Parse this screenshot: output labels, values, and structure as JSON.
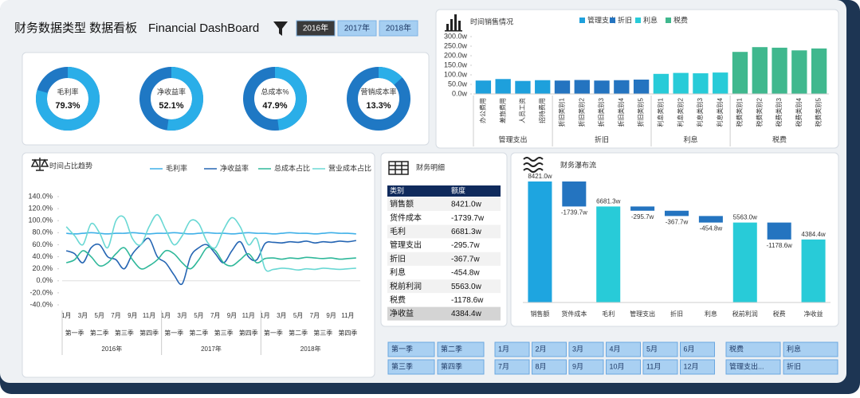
{
  "header": {
    "title_cn": "财务数据类型 数据看板",
    "title_en": "Financial DashBoard",
    "years": [
      "2016年",
      "2017年",
      "2018年"
    ]
  },
  "kpis": [
    {
      "name": "毛利率",
      "value": 79.3,
      "value_label": "79.3%",
      "color": "#2aaee8",
      "track": "#1f78c4"
    },
    {
      "name": "净收益率",
      "value": 52.1,
      "value_label": "52.1%",
      "color": "#2aaee8",
      "track": "#1f78c4"
    },
    {
      "name": "总成本%",
      "value": 47.9,
      "value_label": "47.9%",
      "color": "#2aaee8",
      "track": "#1f78c4"
    },
    {
      "name": "营销成本率",
      "value": 13.3,
      "value_label": "13.3%",
      "color": "#2aaee8",
      "track": "#1f78c4"
    }
  ],
  "chart_data": [
    {
      "type": "bar",
      "title": "时间销售情况",
      "ylim": [
        0,
        300
      ],
      "yticks": [
        {
          "value": 0,
          "label": "0.0w"
        },
        {
          "value": 50,
          "label": "50.0w"
        },
        {
          "value": 100,
          "label": "100.0w"
        },
        {
          "value": 150,
          "label": "150.0w"
        },
        {
          "value": 200,
          "label": "200.0w"
        },
        {
          "value": 250,
          "label": "250.0w"
        },
        {
          "value": 300,
          "label": "300.0w"
        }
      ],
      "series": [
        {
          "name": "管理支出",
          "color": "#1ea0dc",
          "categories": [
            "办公费用",
            "差旅费用",
            "人员工资",
            "招待费用"
          ],
          "values": [
            70,
            78,
            68,
            72
          ]
        },
        {
          "name": "折旧",
          "color": "#2474c0",
          "categories": [
            "折旧类别1",
            "折旧类别2",
            "折旧类别3",
            "折旧类别4",
            "折旧类别5"
          ],
          "values": [
            70,
            73,
            70,
            72,
            75
          ]
        },
        {
          "name": "利息",
          "color": "#28cbd8",
          "categories": [
            "利息类别1",
            "利息类别2",
            "利息类别3",
            "利息类别4"
          ],
          "values": [
            105,
            110,
            108,
            112
          ]
        },
        {
          "name": "税费",
          "color": "#40b88e",
          "categories": [
            "税费类别1",
            "税费类别2",
            "税费类别3",
            "税费类别4",
            "税费类别5"
          ],
          "values": [
            220,
            245,
            242,
            228,
            238
          ]
        }
      ]
    },
    {
      "type": "line",
      "title": "时间占比趋势",
      "ylim": [
        -40,
        140
      ],
      "yticks": [
        {
          "value": -40,
          "label": "-40.0%"
        },
        {
          "value": -20,
          "label": "-20.0%"
        },
        {
          "value": 0,
          "label": "0.0%"
        },
        {
          "value": 20,
          "label": "20.0%"
        },
        {
          "value": 40,
          "label": "40.0%"
        },
        {
          "value": 60,
          "label": "60.0%"
        },
        {
          "value": 80,
          "label": "80.0%"
        },
        {
          "value": 100,
          "label": "100.0%"
        },
        {
          "value": 120,
          "label": "120.0%"
        },
        {
          "value": 140,
          "label": "140.0%"
        }
      ],
      "categories": [
        "1月",
        null,
        "3月",
        null,
        "5月",
        null,
        "7月",
        null,
        "9月",
        null,
        "11月",
        null,
        "1月",
        null,
        "3月",
        null,
        "5月",
        null,
        "7月",
        null,
        "9月",
        null,
        "11月",
        null,
        "1月",
        null,
        "3月",
        null,
        "5月",
        null,
        "7月",
        null,
        "9月",
        null,
        "11月",
        null
      ],
      "quarters": [
        "第一季",
        "第二季",
        "第三季",
        "第四季",
        "第一季",
        "第二季",
        "第三季",
        "第四季",
        "第一季",
        "第二季",
        "第三季",
        "第四季"
      ],
      "years": [
        "2016年",
        "2017年",
        "2018年"
      ],
      "series": [
        {
          "name": "毛利率",
          "color": "#3fb0e8",
          "values": [
            79,
            78,
            79,
            80,
            79,
            78,
            79,
            79,
            80,
            79,
            78,
            79,
            79,
            80,
            79,
            78,
            79,
            80,
            79,
            79,
            78,
            79,
            80,
            79,
            79,
            78,
            79,
            80,
            79,
            79,
            78,
            79,
            80,
            79,
            79,
            78
          ]
        },
        {
          "name": "净收益率",
          "color": "#2565b3",
          "values": [
            50,
            45,
            30,
            55,
            60,
            40,
            35,
            20,
            45,
            60,
            70,
            40,
            30,
            10,
            -5,
            40,
            55,
            60,
            45,
            30,
            50,
            65,
            40,
            35,
            62,
            64,
            63,
            65,
            64,
            66,
            63,
            65,
            64,
            66,
            65,
            67
          ]
        },
        {
          "name": "总成本占比",
          "color": "#2fb89a",
          "values": [
            30,
            35,
            50,
            40,
            25,
            30,
            45,
            55,
            35,
            20,
            25,
            35,
            50,
            45,
            30,
            20,
            35,
            55,
            50,
            30,
            25,
            35,
            45,
            30,
            37,
            38,
            36,
            38,
            37,
            39,
            38,
            37,
            38,
            36,
            37,
            38
          ]
        },
        {
          "name": "营业成本占比",
          "color": "#6ad8d4",
          "values": [
            90,
            75,
            60,
            95,
            80,
            55,
            100,
            105,
            70,
            60,
            90,
            110,
            85,
            60,
            75,
            100,
            95,
            65,
            55,
            85,
            105,
            90,
            60,
            70,
            20,
            19,
            21,
            20,
            18,
            20,
            19,
            21,
            20,
            19,
            20,
            21
          ]
        }
      ]
    },
    {
      "type": "waterfall",
      "title": "财务瀑布流",
      "color_increase": "#1ea5e0",
      "color_total": "#28cbd8",
      "color_decrease": "#2474c0",
      "categories": [
        "销售额",
        "货件成本",
        "毛利",
        "管理支出",
        "折旧",
        "利息",
        "税前利润",
        "税费",
        "净收益"
      ],
      "values": [
        8421.0,
        -1739.7,
        6681.3,
        -295.7,
        -367.7,
        -454.8,
        5563.0,
        -1178.6,
        4384.4
      ],
      "value_labels": [
        "8421.0w",
        "-1739.7w",
        "6681.3w",
        "-295.7w",
        "-367.7w",
        "-454.8w",
        "5563.0w",
        "-1178.6w",
        "4384.4w"
      ]
    }
  ],
  "table": {
    "title": "财务明细",
    "header": [
      "类别",
      "额度"
    ],
    "rows": [
      [
        "销售额",
        "8421.0w"
      ],
      [
        "货件成本",
        "-1739.7w"
      ],
      [
        "毛利",
        "6681.3w"
      ],
      [
        "管理支出",
        "-295.7w"
      ],
      [
        "折旧",
        "-367.7w"
      ],
      [
        "利息",
        "-454.8w"
      ],
      [
        "税前利润",
        "5563.0w"
      ],
      [
        "税费",
        "-1178.6w"
      ],
      [
        "净收益",
        "4384.4w"
      ]
    ]
  },
  "slicers": {
    "quarters": [
      "第一季",
      "第二季",
      "第三季",
      "第四季"
    ],
    "months": [
      "1月",
      "2月",
      "3月",
      "4月",
      "5月",
      "6月",
      "7月",
      "8月",
      "9月",
      "10月",
      "11月",
      "12月"
    ],
    "items": [
      "税费",
      "利息",
      "管理支出...",
      "折旧"
    ]
  }
}
